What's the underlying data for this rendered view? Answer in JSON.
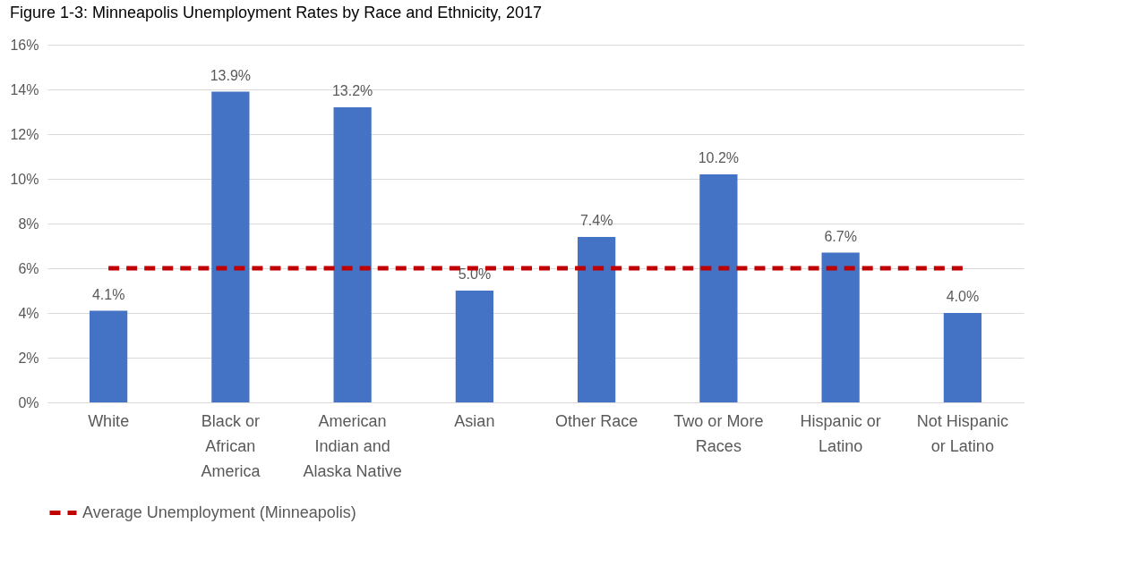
{
  "chart_data": {
    "type": "bar",
    "title": "Figure 1-3: Minneapolis Unemployment Rates by Race and Ethnicity, 2017",
    "categories": [
      "White",
      "Black or African America",
      "American Indian and Alaska Native",
      "Asian",
      "Other Race",
      "Two or More Races",
      "Hispanic or Latino",
      "Not Hispanic or Latino"
    ],
    "ylim": [
      0,
      16
    ],
    "yticks": [
      {
        "value": 0,
        "label": "0%"
      },
      {
        "value": 2,
        "label": "2%"
      },
      {
        "value": 4,
        "label": "4%"
      },
      {
        "value": 6,
        "label": "6%"
      },
      {
        "value": 8,
        "label": "8%"
      },
      {
        "value": 10,
        "label": "10%"
      },
      {
        "value": 12,
        "label": "12%"
      },
      {
        "value": 14,
        "label": "14%"
      },
      {
        "value": 16,
        "label": "16%"
      }
    ],
    "grid": "y",
    "legend": "bottom",
    "series": [
      {
        "color": "#4472c4",
        "values": [
          4.1,
          13.9,
          13.2,
          5.0,
          7.4,
          10.2,
          6.7,
          4.0
        ],
        "value_labels": [
          "4.1%",
          "13.9%",
          "13.2%",
          "5.0%",
          "7.4%",
          "10.2%",
          "6.7%",
          "4.0%"
        ]
      },
      {
        "type": "line",
        "name": "Average Unemployment (Minneapolis)",
        "color": "#c00000",
        "line_style": "dashed",
        "values": [
          6,
          6,
          6,
          6,
          6,
          6,
          6,
          6
        ]
      }
    ]
  }
}
